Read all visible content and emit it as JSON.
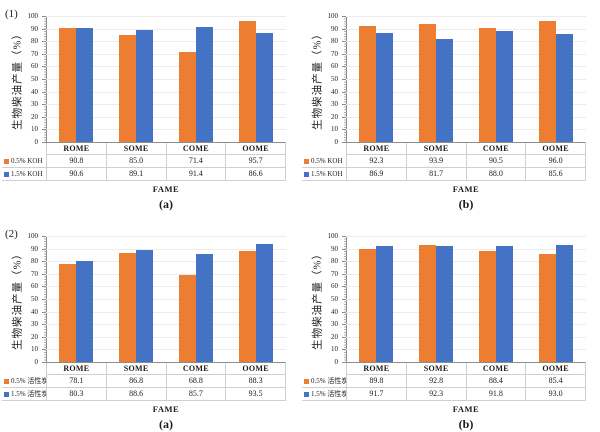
{
  "figure": {
    "background": "#ffffff"
  },
  "colors": {
    "series_orange": "#ED7D31",
    "series_blue": "#4472C4",
    "axis_line": "#8c8c8c",
    "gridline": "#ececec",
    "table_border": "#cfcfcf"
  },
  "chart_data": [
    {
      "type": "bar",
      "panel_label": "(1)",
      "caption": "(a)",
      "ylabel": "生物柴油产量（%）",
      "xlabel": "FAME",
      "ylim": [
        0,
        100
      ],
      "ytick_step": 10,
      "grid": true,
      "legend_position": "table-left",
      "categories": [
        "ROME",
        "SOME",
        "COME",
        "OOME"
      ],
      "series": [
        {
          "name": "0.5% KOH",
          "color": "#ED7D31",
          "values": [
            90.8,
            85.0,
            71.4,
            95.7
          ]
        },
        {
          "name": "1.5% KOH",
          "color": "#4472C4",
          "values": [
            90.6,
            89.1,
            91.4,
            86.6
          ]
        }
      ]
    },
    {
      "type": "bar",
      "panel_label": "",
      "caption": "(b)",
      "ylabel": "生物柴油产量（%）",
      "xlabel": "FAME",
      "ylim": [
        0,
        100
      ],
      "ytick_step": 10,
      "grid": true,
      "legend_position": "table-left",
      "categories": [
        "ROME",
        "SOME",
        "COME",
        "OOME"
      ],
      "series": [
        {
          "name": "0.5% KOH",
          "color": "#ED7D31",
          "values": [
            92.3,
            93.9,
            90.5,
            96.0
          ]
        },
        {
          "name": "1.5% KOH",
          "color": "#4472C4",
          "values": [
            86.9,
            81.7,
            88.0,
            85.6
          ]
        }
      ]
    },
    {
      "type": "bar",
      "panel_label": "(2)",
      "caption": "(a)",
      "ylabel": "生物柴油产量（%）",
      "xlabel": "FAME",
      "ylim": [
        0,
        100
      ],
      "ytick_step": 10,
      "grid": true,
      "legend_position": "table-left",
      "categories": [
        "ROME",
        "SOME",
        "COME",
        "OOME"
      ],
      "series": [
        {
          "name": "0.5% 活性炭",
          "color": "#ED7D31",
          "values": [
            78.1,
            86.8,
            68.8,
            88.3
          ]
        },
        {
          "name": "1.5% 活性炭",
          "color": "#4472C4",
          "values": [
            80.3,
            88.6,
            85.7,
            93.5
          ]
        }
      ]
    },
    {
      "type": "bar",
      "panel_label": "",
      "caption": "(b)",
      "ylabel": "生物柴油产量（%）",
      "xlabel": "FAME",
      "ylim": [
        0,
        100
      ],
      "ytick_step": 10,
      "grid": true,
      "legend_position": "table-left",
      "categories": [
        "ROME",
        "SOME",
        "COME",
        "OOME"
      ],
      "series": [
        {
          "name": "0.5% 活性炭",
          "color": "#ED7D31",
          "values": [
            89.8,
            92.8,
            88.4,
            85.4
          ]
        },
        {
          "name": "1.5% 活性炭",
          "color": "#4472C4",
          "values": [
            91.7,
            92.3,
            91.8,
            93.0
          ]
        }
      ]
    }
  ]
}
